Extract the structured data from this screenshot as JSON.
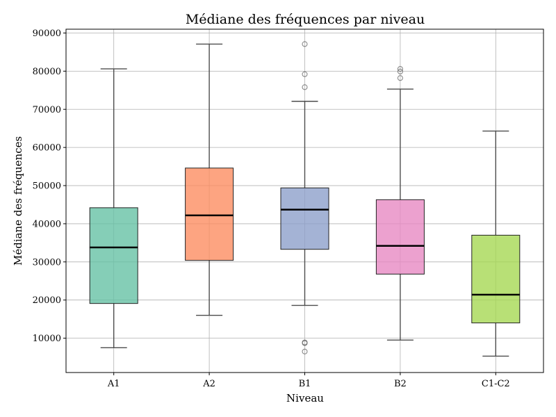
{
  "chart_data": {
    "type": "boxplot",
    "title": "Médiane des fréquences par niveau",
    "xlabel": "Niveau",
    "ylabel": "Médiane des fréquences",
    "ylim": [
      1000,
      91000
    ],
    "yticks": [
      10000,
      20000,
      30000,
      40000,
      50000,
      60000,
      70000,
      80000,
      90000
    ],
    "grid": true,
    "categories": [
      "A1",
      "A2",
      "B1",
      "B2",
      "C1-C2"
    ],
    "boxes": [
      {
        "category": "A1",
        "whisker_low": 7500,
        "q1": 19100,
        "median": 33800,
        "q3": 44200,
        "whisker_high": 80600,
        "outliers": [],
        "color": "#66c2a5"
      },
      {
        "category": "A2",
        "whisker_low": 16000,
        "q1": 30400,
        "median": 42200,
        "q3": 54600,
        "whisker_high": 87100,
        "outliers": [],
        "color": "#fc8d62"
      },
      {
        "category": "B1",
        "whisker_low": 18600,
        "q1": 33300,
        "median": 43700,
        "q3": 49400,
        "whisker_high": 72100,
        "outliers": [
          87100,
          79200,
          75800,
          8900,
          8700,
          6500
        ],
        "color": "#8da0cb"
      },
      {
        "category": "B2",
        "whisker_low": 9500,
        "q1": 26800,
        "median": 34200,
        "q3": 46300,
        "whisker_high": 75300,
        "outliers": [
          80600,
          79900,
          78200
        ],
        "color": "#e78ac3"
      },
      {
        "category": "C1-C2",
        "whisker_low": 5300,
        "q1": 14000,
        "median": 21400,
        "q3": 37000,
        "whisker_high": 64300,
        "outliers": [],
        "color": "#a6d854"
      }
    ]
  }
}
